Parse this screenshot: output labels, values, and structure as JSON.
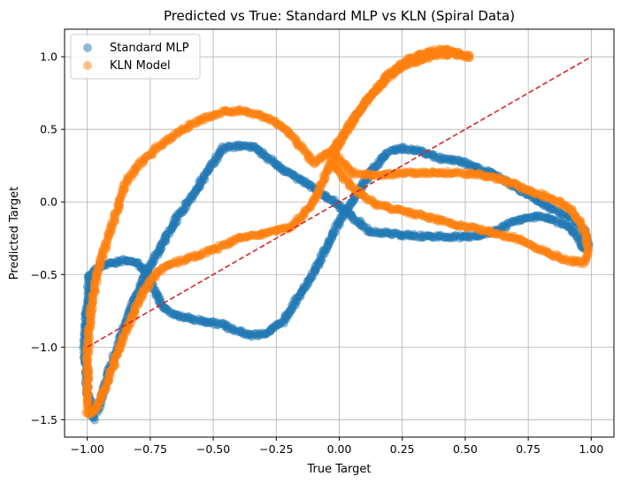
{
  "chart_data": {
    "type": "scatter",
    "title": "Predicted vs True: Standard MLP vs KLN (Spiral Data)",
    "xlabel": "True Target",
    "ylabel": "Predicted Target",
    "xlim": [
      -1.09,
      1.09
    ],
    "ylim": [
      -1.62,
      1.19
    ],
    "xticks": [
      -1.0,
      -0.75,
      -0.5,
      -0.25,
      0.0,
      0.25,
      0.5,
      0.75,
      1.0
    ],
    "xtick_labels": [
      "−1.00",
      "−0.75",
      "−0.50",
      "−0.25",
      "0.00",
      "0.25",
      "0.50",
      "0.75",
      "1.00"
    ],
    "yticks": [
      -1.5,
      -1.0,
      -0.5,
      0.0,
      0.5,
      1.0
    ],
    "ytick_labels": [
      "−1.5",
      "−1.0",
      "−0.5",
      "0.0",
      "0.5",
      "1.0"
    ],
    "grid": true,
    "legend_position": "top-left",
    "reference_line": {
      "x": [
        -1.0,
        1.0
      ],
      "y": [
        -1.0,
        1.0
      ],
      "color": "#d62728",
      "style": "dashed"
    },
    "series": [
      {
        "name": "Standard MLP",
        "color": "#1f77b4",
        "path": [
          [
            -0.97,
            -1.5
          ],
          [
            -1.0,
            -1.3
          ],
          [
            -1.01,
            -1.0
          ],
          [
            -1.0,
            -0.7
          ],
          [
            -0.99,
            -0.5
          ],
          [
            -0.95,
            -0.45
          ],
          [
            -0.9,
            -0.42
          ],
          [
            -0.85,
            -0.4
          ],
          [
            -0.8,
            -0.42
          ],
          [
            -0.76,
            -0.5
          ],
          [
            -0.73,
            -0.62
          ],
          [
            -0.7,
            -0.72
          ],
          [
            -0.65,
            -0.78
          ],
          [
            -0.55,
            -0.82
          ],
          [
            -0.47,
            -0.84
          ],
          [
            -0.42,
            -0.88
          ],
          [
            -0.35,
            -0.92
          ],
          [
            -0.28,
            -0.9
          ],
          [
            -0.22,
            -0.82
          ],
          [
            -0.18,
            -0.7
          ],
          [
            -0.12,
            -0.55
          ],
          [
            -0.07,
            -0.38
          ],
          [
            -0.02,
            -0.2
          ],
          [
            0.03,
            -0.05
          ],
          [
            0.08,
            0.08
          ],
          [
            0.13,
            0.22
          ],
          [
            0.18,
            0.32
          ],
          [
            0.23,
            0.37
          ],
          [
            0.3,
            0.36
          ],
          [
            0.4,
            0.3
          ],
          [
            0.48,
            0.28
          ],
          [
            0.52,
            0.25
          ],
          [
            0.6,
            0.2
          ],
          [
            0.7,
            0.1
          ],
          [
            0.8,
            0.0
          ],
          [
            0.88,
            -0.08
          ],
          [
            0.93,
            -0.12
          ],
          [
            0.97,
            -0.2
          ],
          [
            0.99,
            -0.3
          ],
          [
            0.97,
            -0.32
          ],
          [
            0.92,
            -0.18
          ],
          [
            0.85,
            -0.12
          ],
          [
            0.78,
            -0.1
          ],
          [
            0.7,
            -0.13
          ],
          [
            0.62,
            -0.2
          ],
          [
            0.55,
            -0.24
          ],
          [
            0.4,
            -0.24
          ],
          [
            0.25,
            -0.23
          ],
          [
            0.12,
            -0.2
          ],
          [
            0.05,
            -0.1
          ],
          [
            -0.02,
            0.0
          ],
          [
            -0.08,
            0.07
          ],
          [
            -0.15,
            0.15
          ],
          [
            -0.22,
            0.22
          ],
          [
            -0.28,
            0.3
          ],
          [
            -0.33,
            0.37
          ],
          [
            -0.38,
            0.39
          ],
          [
            -0.46,
            0.37
          ],
          [
            -0.52,
            0.22
          ],
          [
            -0.58,
            0.05
          ],
          [
            -0.64,
            -0.1
          ],
          [
            -0.68,
            -0.22
          ],
          [
            -0.72,
            -0.35
          ],
          [
            -0.77,
            -0.5
          ],
          [
            -0.82,
            -0.7
          ],
          [
            -0.87,
            -0.95
          ],
          [
            -0.92,
            -1.2
          ],
          [
            -0.96,
            -1.45
          ]
        ]
      },
      {
        "name": "KLN Model",
        "color": "#ff7f0e",
        "path": [
          [
            -1.0,
            -1.46
          ],
          [
            -0.97,
            -1.44
          ],
          [
            -0.94,
            -1.33
          ],
          [
            -0.9,
            -1.15
          ],
          [
            -0.86,
            -0.95
          ],
          [
            -0.82,
            -0.78
          ],
          [
            -0.77,
            -0.6
          ],
          [
            -0.72,
            -0.48
          ],
          [
            -0.66,
            -0.42
          ],
          [
            -0.58,
            -0.38
          ],
          [
            -0.5,
            -0.33
          ],
          [
            -0.4,
            -0.25
          ],
          [
            -0.3,
            -0.22
          ],
          [
            -0.2,
            -0.18
          ],
          [
            -0.12,
            -0.05
          ],
          [
            -0.08,
            0.08
          ],
          [
            -0.04,
            0.25
          ],
          [
            0.0,
            0.4
          ],
          [
            0.05,
            0.55
          ],
          [
            0.12,
            0.72
          ],
          [
            0.2,
            0.88
          ],
          [
            0.27,
            0.98
          ],
          [
            0.35,
            1.03
          ],
          [
            0.42,
            1.05
          ],
          [
            0.48,
            1.02
          ],
          [
            0.52,
            1.0
          ],
          [
            0.45,
            1.02
          ],
          [
            0.38,
            1.01
          ],
          [
            0.32,
            0.98
          ],
          [
            0.25,
            0.93
          ],
          [
            0.18,
            0.84
          ],
          [
            0.1,
            0.68
          ],
          [
            0.03,
            0.5
          ],
          [
            -0.03,
            0.35
          ],
          [
            -0.1,
            0.27
          ],
          [
            -0.2,
            0.48
          ],
          [
            -0.28,
            0.58
          ],
          [
            -0.38,
            0.63
          ],
          [
            -0.46,
            0.62
          ],
          [
            -0.55,
            0.57
          ],
          [
            -0.62,
            0.5
          ],
          [
            -0.72,
            0.38
          ],
          [
            -0.8,
            0.25
          ],
          [
            -0.85,
            0.12
          ],
          [
            -0.88,
            -0.05
          ],
          [
            -0.92,
            -0.25
          ],
          [
            -0.96,
            -0.5
          ],
          [
            -0.99,
            -0.8
          ],
          [
            -1.0,
            -1.1
          ],
          [
            -1.0,
            -1.46
          ]
        ]
      },
      {
        "name": "",
        "color": "#ff7f0e",
        "path": [
          [
            -0.03,
            0.35
          ],
          [
            0.05,
            0.2
          ],
          [
            0.15,
            0.18
          ],
          [
            0.25,
            0.2
          ],
          [
            0.35,
            0.2
          ],
          [
            0.45,
            0.2
          ],
          [
            0.55,
            0.19
          ],
          [
            0.65,
            0.15
          ],
          [
            0.75,
            0.08
          ],
          [
            0.85,
            0.02
          ],
          [
            0.92,
            -0.05
          ],
          [
            0.97,
            -0.18
          ],
          [
            0.99,
            -0.33
          ],
          [
            0.97,
            -0.42
          ],
          [
            0.9,
            -0.4
          ],
          [
            0.8,
            -0.33
          ],
          [
            0.7,
            -0.25
          ],
          [
            0.58,
            -0.2
          ],
          [
            0.45,
            -0.15
          ],
          [
            0.3,
            -0.08
          ],
          [
            0.15,
            -0.02
          ],
          [
            0.05,
            0.1
          ],
          [
            -0.03,
            0.28
          ]
        ]
      }
    ]
  }
}
